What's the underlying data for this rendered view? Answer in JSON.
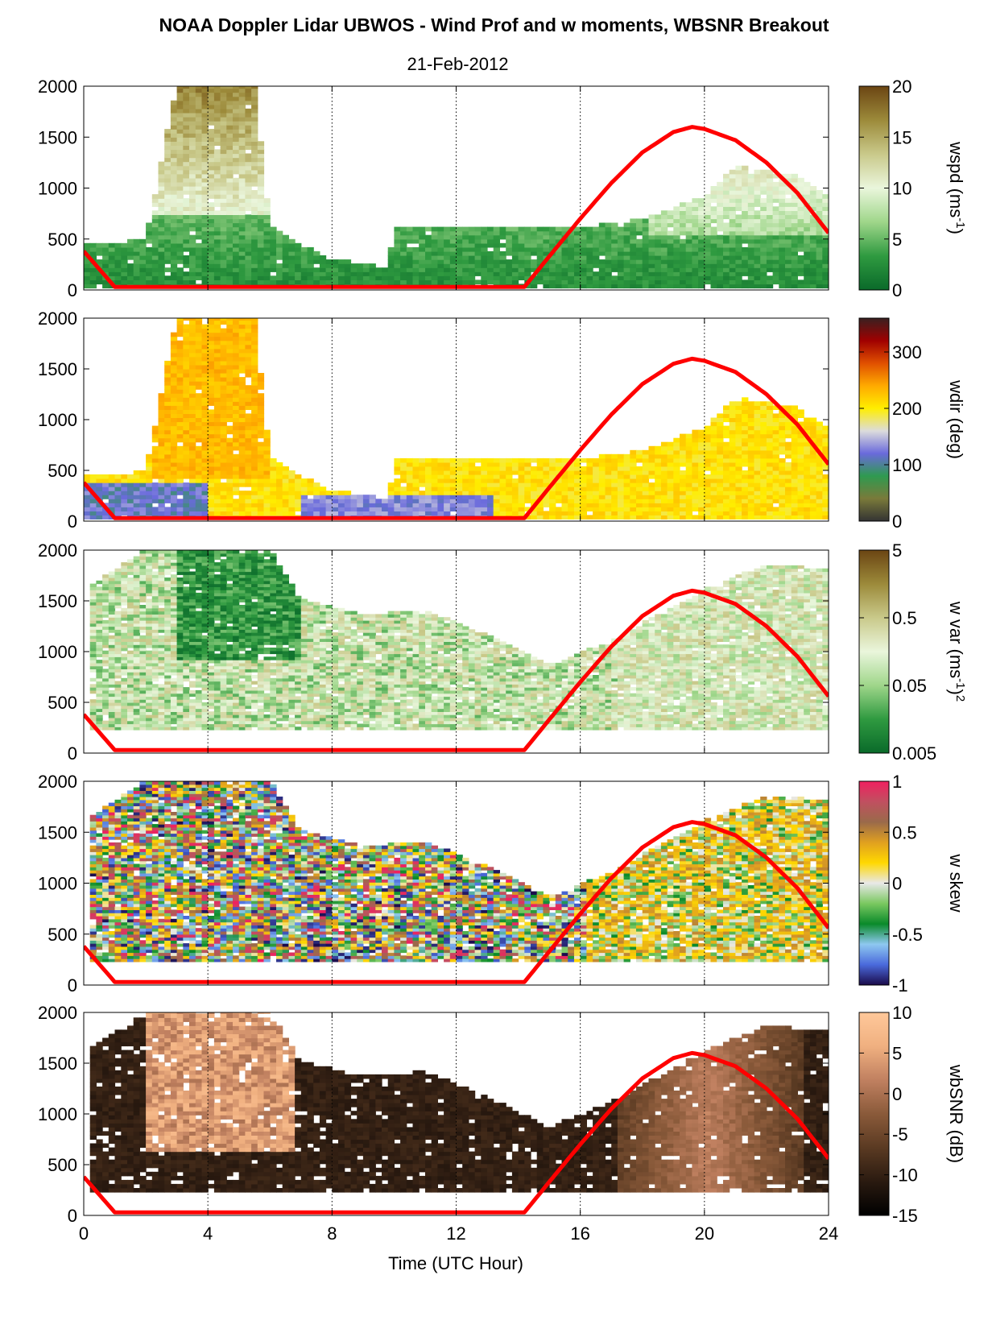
{
  "figure": {
    "title": "NOAA Doppler Lidar UBWOS - Wind Prof and w moments, WBSNR Breakout",
    "subtitle": "21-Feb-2012",
    "xlabel": "Time (UTC Hour)",
    "xticks": [
      "0",
      "4",
      "8",
      "12",
      "16",
      "20",
      "24"
    ]
  },
  "chart_data": [
    {
      "type": "heatmap",
      "title": "",
      "xlabel": "",
      "ylabel": "",
      "xlim": [
        0,
        24
      ],
      "ylim": [
        0,
        2000
      ],
      "yticks": [
        "0",
        "500",
        "1000",
        "1500",
        "2000"
      ],
      "colorbar": {
        "label": "wspd (ms",
        "superscript": "-1",
        "suffix": ")",
        "ticks": [
          "0",
          "5",
          "10",
          "15",
          "20"
        ],
        "range": [
          0,
          20
        ],
        "colors": [
          "#0a6a2a",
          "#2f9a40",
          "#9fd68a",
          "#eaf6dc",
          "#c9c98a",
          "#9c8a3a",
          "#6b4513"
        ]
      },
      "field": "wspd",
      "solar_elevation_curve": {
        "x": [
          0,
          1,
          14.2,
          15,
          16,
          17,
          18,
          19,
          19.6,
          20,
          21,
          22,
          23,
          24
        ],
        "y": [
          380,
          30,
          30,
          330,
          700,
          1050,
          1350,
          1550,
          1600,
          1580,
          1470,
          1250,
          950,
          560
        ]
      }
    },
    {
      "type": "heatmap",
      "title": "",
      "xlabel": "",
      "ylabel": "",
      "xlim": [
        0,
        24
      ],
      "ylim": [
        0,
        2000
      ],
      "yticks": [
        "0",
        "500",
        "1000",
        "1500",
        "2000"
      ],
      "colorbar": {
        "label": "wdir (deg)",
        "ticks": [
          "0",
          "100",
          "200",
          "300"
        ],
        "range": [
          0,
          360
        ],
        "colors": [
          "#333333",
          "#7a7a3a",
          "#2f9a50",
          "#6a6adc",
          "#dcdcdc",
          "#ffee00",
          "#ffaa00",
          "#e05000",
          "#a00000",
          "#3a2020"
        ]
      },
      "field": "wdir",
      "solar_elevation_curve": {
        "x": [
          0,
          1,
          14.2,
          15,
          16,
          17,
          18,
          19,
          19.6,
          20,
          21,
          22,
          23,
          24
        ],
        "y": [
          380,
          30,
          30,
          330,
          700,
          1050,
          1350,
          1550,
          1600,
          1580,
          1470,
          1250,
          950,
          560
        ]
      }
    },
    {
      "type": "heatmap",
      "title": "",
      "xlabel": "",
      "ylabel": "",
      "xlim": [
        0,
        24
      ],
      "ylim": [
        0,
        2000
      ],
      "yticks": [
        "0",
        "500",
        "1000",
        "1500",
        "2000"
      ],
      "colorbar": {
        "label": "w var (ms",
        "superscript": "-1",
        "suffix": ")",
        "power": "2",
        "ticks": [
          "0.005",
          "0.05",
          "0.5",
          "5"
        ],
        "range": [
          0.005,
          5
        ],
        "scale": "log",
        "colors": [
          "#0a6a2a",
          "#2f9a40",
          "#9fd68a",
          "#eaf6dc",
          "#c9c98a",
          "#9c8a3a",
          "#6b4513"
        ]
      },
      "field": "wvar",
      "solar_elevation_curve": {
        "x": [
          0,
          1,
          14.2,
          15,
          16,
          17,
          18,
          19,
          19.6,
          20,
          21,
          22,
          23,
          24
        ],
        "y": [
          380,
          30,
          30,
          330,
          700,
          1050,
          1350,
          1550,
          1600,
          1580,
          1470,
          1250,
          950,
          560
        ]
      }
    },
    {
      "type": "heatmap",
      "title": "",
      "xlabel": "",
      "ylabel": "",
      "xlim": [
        0,
        24
      ],
      "ylim": [
        0,
        2000
      ],
      "yticks": [
        "0",
        "500",
        "1000",
        "1500",
        "2000"
      ],
      "colorbar": {
        "label": "w skew",
        "ticks": [
          "-1",
          "-0.5",
          "0",
          "0.5",
          "1"
        ],
        "range": [
          -1,
          1
        ],
        "colors": [
          "#1a0a4a",
          "#4a6adc",
          "#8ec8f0",
          "#0a8a2a",
          "#7ac860",
          "#e8e8e8",
          "#ffd800",
          "#e0a020",
          "#9a6a4a",
          "#c05060",
          "#f02060"
        ]
      },
      "field": "wskew",
      "solar_elevation_curve": {
        "x": [
          0,
          1,
          14.2,
          15,
          16,
          17,
          18,
          19,
          19.6,
          20,
          21,
          22,
          23,
          24
        ],
        "y": [
          380,
          30,
          30,
          330,
          700,
          1050,
          1350,
          1550,
          1600,
          1580,
          1470,
          1250,
          950,
          560
        ]
      }
    },
    {
      "type": "heatmap",
      "title": "",
      "xlabel": "Time (UTC Hour)",
      "ylabel": "",
      "xlim": [
        0,
        24
      ],
      "ylim": [
        0,
        2000
      ],
      "yticks": [
        "0",
        "500",
        "1000",
        "1500",
        "2000"
      ],
      "colorbar": {
        "label": "wbSNR (dB)",
        "ticks": [
          "-15",
          "-10",
          "-5",
          "0",
          "5",
          "10"
        ],
        "range": [
          -15,
          10
        ],
        "colors": [
          "#000000",
          "#2a1a10",
          "#5a3a22",
          "#8a5a3a",
          "#c08060",
          "#f0b080",
          "#ffc89a"
        ]
      },
      "field": "wbsnr",
      "solar_elevation_curve": {
        "x": [
          0,
          1,
          14.2,
          15,
          16,
          17,
          18,
          19,
          19.6,
          20,
          21,
          22,
          23,
          24
        ],
        "y": [
          380,
          30,
          30,
          330,
          700,
          1050,
          1350,
          1550,
          1600,
          1580,
          1470,
          1250,
          950,
          560
        ]
      }
    }
  ]
}
